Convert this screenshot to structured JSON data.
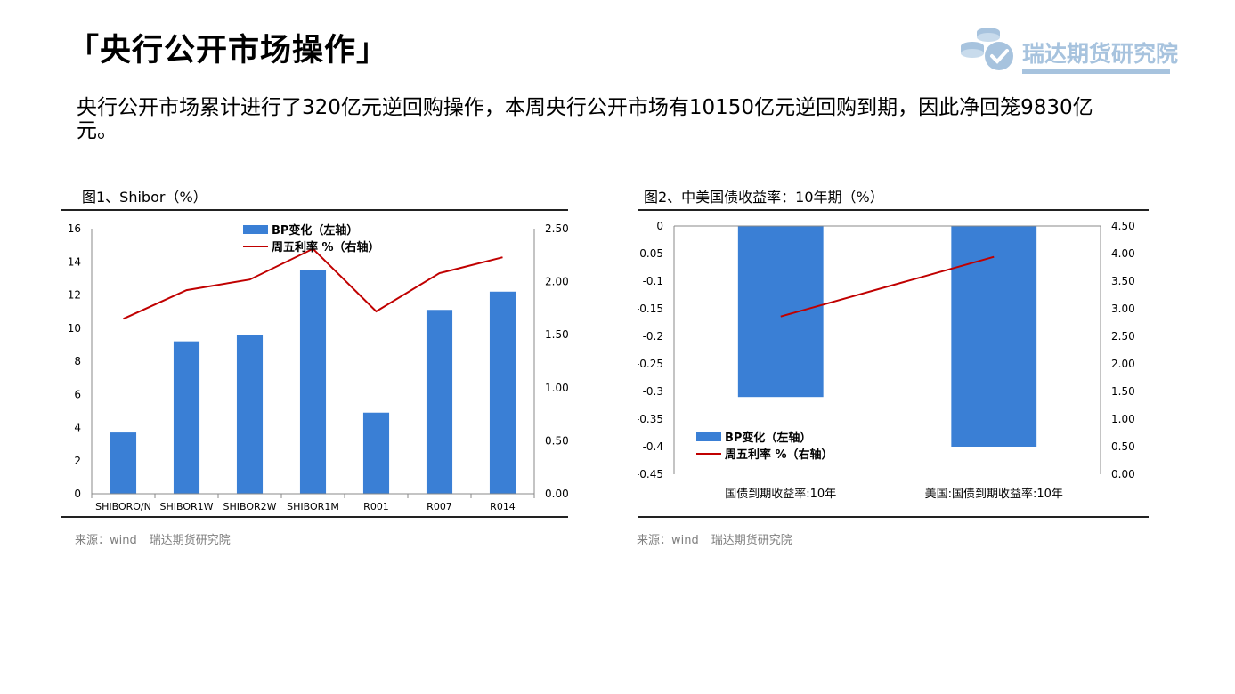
{
  "page": {
    "title": "「央行公开市场操作」",
    "logo_text": "瑞达期货研究院",
    "summary": "央行公开市场累计进行了320亿元逆回购操作，本周央行公开市场有10150亿元逆回购到期，因此净回笼9830亿元。"
  },
  "colors": {
    "bar": "#3a7fd5",
    "line": "#c00000",
    "axis": "#888888",
    "logo": "#a7c3de"
  },
  "figure1": {
    "title": "图1、Shibor（%）",
    "source": [
      "来源：wind",
      "瑞达期货研究院"
    ]
  },
  "figure2": {
    "title": "图2、中美国债收益率：10年期（%）",
    "source": [
      "来源：wind",
      "瑞达期货研究院"
    ]
  },
  "chart_data": [
    {
      "type": "bar",
      "categories": [
        "SHIBORO/N",
        "SHIBOR1W",
        "SHIBOR2W",
        "SHIBOR1M",
        "R001",
        "R007",
        "R014"
      ],
      "series": [
        {
          "name": "BP变化（左轴）",
          "type": "bar",
          "axis": "left",
          "values": [
            3.7,
            9.2,
            9.6,
            13.5,
            4.9,
            11.1,
            12.2
          ]
        },
        {
          "name": "周五利率 %（右轴）",
          "type": "line",
          "axis": "right",
          "values": [
            1.65,
            1.92,
            2.02,
            2.31,
            1.72,
            2.08,
            2.23
          ]
        }
      ],
      "y_left": {
        "min": 0,
        "max": 16,
        "ticks": [
          "0",
          "2",
          "4",
          "6",
          "8",
          "10",
          "12",
          "14",
          "16"
        ]
      },
      "y_right": {
        "min": 0,
        "max": 2.5,
        "ticks": [
          "0.00",
          "0.50",
          "1.00",
          "1.50",
          "2.00",
          "2.50"
        ]
      },
      "legend_position": "top-center",
      "grid": false
    },
    {
      "type": "bar",
      "categories": [
        "国债到期收益率:10年",
        "美国:国债到期收益率:10年"
      ],
      "series": [
        {
          "name": "BP变化（左轴）",
          "type": "bar",
          "axis": "left",
          "values": [
            -0.31,
            -0.4
          ]
        },
        {
          "name": "周五利率 %（右轴）",
          "type": "line",
          "axis": "right",
          "values": [
            2.86,
            3.94
          ]
        }
      ],
      "y_left": {
        "min": -0.45,
        "max": 0,
        "ticks": [
          "0",
          "-0.05",
          "-0.1",
          "-0.15",
          "-0.2",
          "-0.25",
          "-0.3",
          "-0.35",
          "-0.4",
          "-0.45"
        ]
      },
      "y_right": {
        "min": 0,
        "max": 4.5,
        "ticks": [
          "4.50",
          "4.00",
          "3.50",
          "3.00",
          "2.50",
          "2.00",
          "1.50",
          "1.00",
          "0.50",
          "0.00"
        ]
      },
      "legend_position": "bottom-left",
      "grid": false
    }
  ]
}
